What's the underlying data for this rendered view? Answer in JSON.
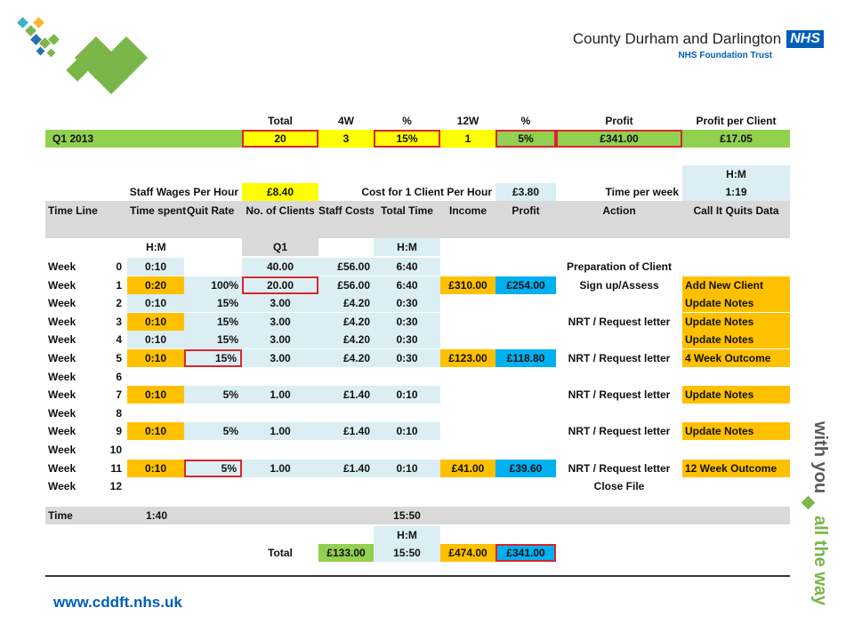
{
  "header": {
    "org_name": "County Durham and Darlington",
    "nhs_badge": "NHS",
    "org_sub": "NHS Foundation Trust"
  },
  "summary": {
    "headers": [
      "Total",
      "4W",
      "%",
      "12W",
      "%",
      "Profit",
      "Profit per Client"
    ],
    "label": "Q1 2013",
    "values": [
      "20",
      "3",
      "15%",
      "1",
      "5%",
      "£341.00",
      "£17.05"
    ]
  },
  "params": {
    "hm_label": "H:M",
    "staff_wages_label": "Staff Wages Per Hour",
    "staff_wages_value": "£8.40",
    "cost_label": "Cost for 1 Client Per Hour",
    "cost_value": "£3.80",
    "time_week_label": "Time per week",
    "time_week_value": "1:19"
  },
  "table": {
    "columns": [
      "Time Line",
      "Time spent",
      "Quit Rate",
      "No. of Clients",
      "Staff Costs",
      "Total Time",
      "Income",
      "Profit",
      "Action",
      "Call It Quits Data"
    ],
    "sub_hm1": "H:M",
    "sub_q1": "Q1",
    "sub_hm2": "H:M",
    "rows": [
      {
        "w": "Week",
        "n": "0",
        "ts": "0:10",
        "qr": "",
        "nc": "40.00",
        "sc": "£56.00",
        "tt": "6:40",
        "inc": "",
        "pr": "",
        "act": "Preparation of Client",
        "cq": ""
      },
      {
        "w": "Week",
        "n": "1",
        "ts": "0:20",
        "qr": "100%",
        "nc": "20.00",
        "sc": "£56.00",
        "tt": "6:40",
        "inc": "£310.00",
        "pr": "£254.00",
        "act": "Sign up/Assess",
        "cq": "Add New Client"
      },
      {
        "w": "Week",
        "n": "2",
        "ts": "0:10",
        "qr": "15%",
        "nc": "3.00",
        "sc": "£4.20",
        "tt": "0:30",
        "inc": "",
        "pr": "",
        "act": "",
        "cq": "Update Notes"
      },
      {
        "w": "Week",
        "n": "3",
        "ts": "0:10",
        "qr": "15%",
        "nc": "3.00",
        "sc": "£4.20",
        "tt": "0:30",
        "inc": "",
        "pr": "",
        "act": "NRT / Request letter",
        "cq": "Update Notes"
      },
      {
        "w": "Week",
        "n": "4",
        "ts": "0:10",
        "qr": "15%",
        "nc": "3.00",
        "sc": "£4.20",
        "tt": "0:30",
        "inc": "",
        "pr": "",
        "act": "",
        "cq": "Update Notes"
      },
      {
        "w": "Week",
        "n": "5",
        "ts": "0:10",
        "qr": "15%",
        "nc": "3.00",
        "sc": "£4.20",
        "tt": "0:30",
        "inc": "£123.00",
        "pr": "£118.80",
        "act": "NRT / Request letter",
        "cq": "4 Week Outcome"
      },
      {
        "w": "Week",
        "n": "6",
        "ts": "",
        "qr": "",
        "nc": "",
        "sc": "",
        "tt": "",
        "inc": "",
        "pr": "",
        "act": "",
        "cq": ""
      },
      {
        "w": "Week",
        "n": "7",
        "ts": "0:10",
        "qr": "5%",
        "nc": "1.00",
        "sc": "£1.40",
        "tt": "0:10",
        "inc": "",
        "pr": "",
        "act": "NRT / Request letter",
        "cq": "Update Notes"
      },
      {
        "w": "Week",
        "n": "8",
        "ts": "",
        "qr": "",
        "nc": "",
        "sc": "",
        "tt": "",
        "inc": "",
        "pr": "",
        "act": "",
        "cq": ""
      },
      {
        "w": "Week",
        "n": "9",
        "ts": "0:10",
        "qr": "5%",
        "nc": "1.00",
        "sc": "£1.40",
        "tt": "0:10",
        "inc": "",
        "pr": "",
        "act": "NRT / Request letter",
        "cq": "Update Notes"
      },
      {
        "w": "Week",
        "n": "10",
        "ts": "",
        "qr": "",
        "nc": "",
        "sc": "",
        "tt": "",
        "inc": "",
        "pr": "",
        "act": "",
        "cq": ""
      },
      {
        "w": "Week",
        "n": "11",
        "ts": "0:10",
        "qr": "5%",
        "nc": "1.00",
        "sc": "£1.40",
        "tt": "0:10",
        "inc": "£41.00",
        "pr": "£39.60",
        "act": "NRT / Request letter",
        "cq": "12 Week Outcome"
      },
      {
        "w": "Week",
        "n": "12",
        "ts": "",
        "qr": "",
        "nc": "",
        "sc": "",
        "tt": "",
        "inc": "",
        "pr": "",
        "act": "Close File",
        "cq": ""
      }
    ]
  },
  "totals": {
    "time_label": "Time",
    "time_spent": "1:40",
    "total_time": "15:50",
    "hm_label": "H:M",
    "total_label": "Total",
    "staff_costs": "£133.00",
    "total_time2": "15:50",
    "income": "£474.00",
    "profit": "£341.00"
  },
  "footer": {
    "url": "www.cddft.nhs.uk",
    "slogan_a": "with you",
    "slogan_b": "all the way"
  },
  "colors": {
    "green": "#92d050",
    "yellow": "#ffff00",
    "orange": "#ffc000",
    "blue": "#00b0f0",
    "light_blue": "#dbeef4",
    "grey": "#d9d9d9",
    "nhs_blue": "#005eb8",
    "brand_green": "#7ab648"
  }
}
